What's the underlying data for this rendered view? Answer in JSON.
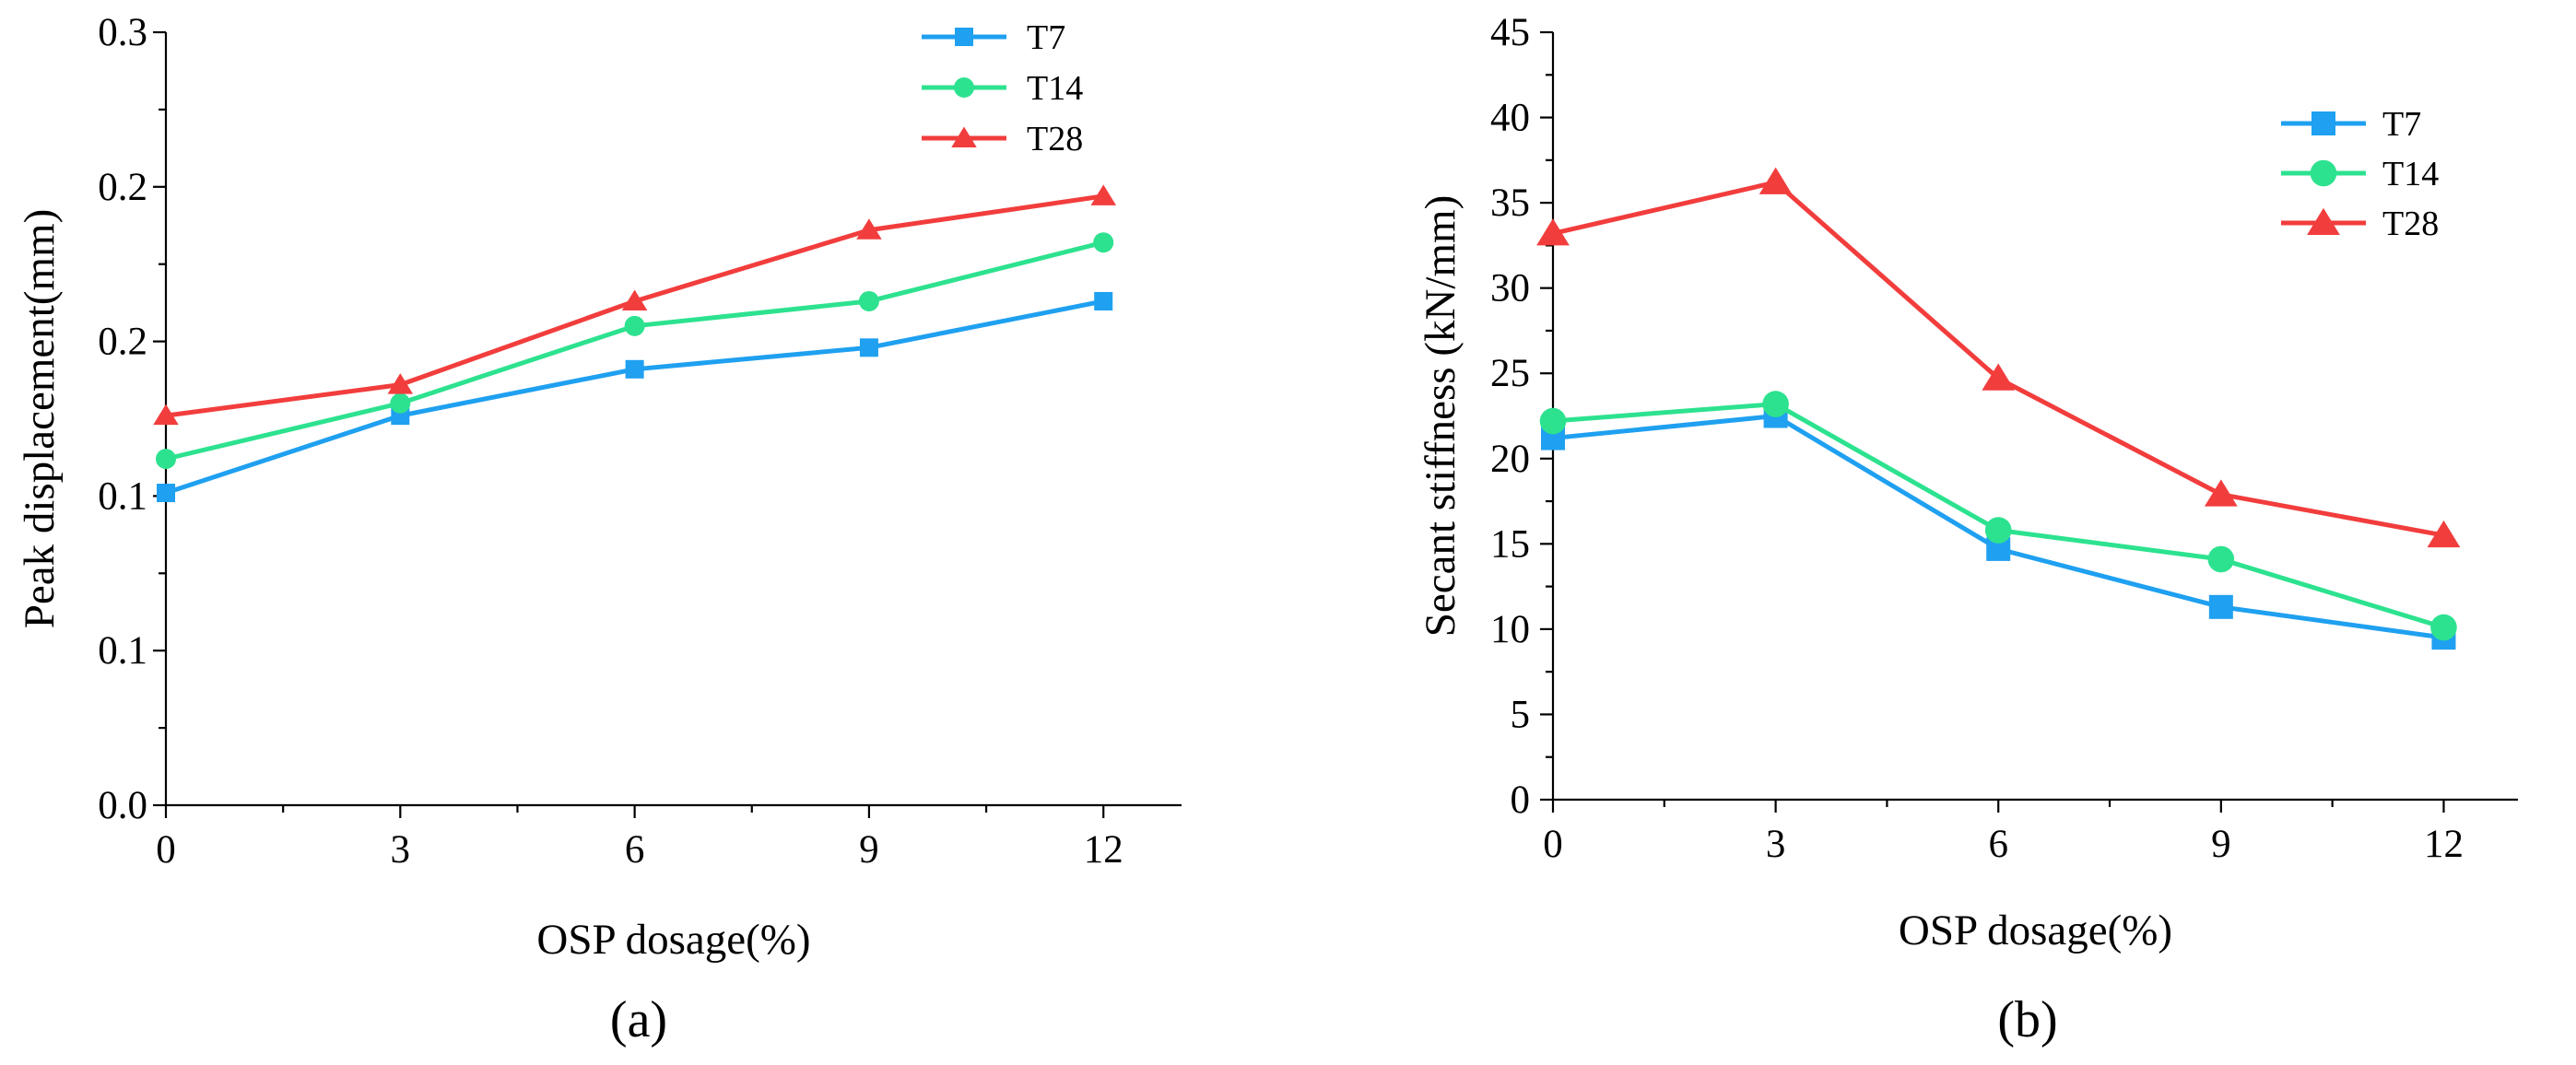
{
  "chart_data": [
    {
      "type": "line",
      "panel_label": "(a)",
      "xlabel": "OSP dosage(%)",
      "ylabel": "Peak displacement(mm)",
      "x": [
        0,
        3,
        6,
        9,
        12
      ],
      "xticks": [
        "0",
        "3",
        "6",
        "9",
        "12"
      ],
      "xlim": [
        0,
        13
      ],
      "ylim": [
        0,
        0.25
      ],
      "yticks": [
        {
          "value": 0,
          "label": "0.0"
        },
        {
          "value": 0.05,
          "label": "0.1"
        },
        {
          "value": 0.1,
          "label": "0.1"
        },
        {
          "value": 0.15,
          "label": "0.2"
        },
        {
          "value": 0.2,
          "label": "0.2"
        },
        {
          "value": 0.25,
          "label": "0.3"
        }
      ],
      "legend_position": "top-right",
      "series": [
        {
          "name": "T7",
          "marker": "square",
          "color": "#1fa0f0",
          "values": [
            0.101,
            0.126,
            0.141,
            0.148,
            0.163
          ]
        },
        {
          "name": "T14",
          "marker": "circle",
          "color": "#2de28f",
          "values": [
            0.112,
            0.13,
            0.155,
            0.163,
            0.182
          ]
        },
        {
          "name": "T28",
          "marker": "triangle",
          "color": "#f23d3d",
          "values": [
            0.126,
            0.136,
            0.163,
            0.186,
            0.197
          ]
        }
      ]
    },
    {
      "type": "line",
      "panel_label": "(b)",
      "xlabel": "OSP dosage(%)",
      "ylabel": "Secant stiffness (kN/mm)",
      "x": [
        0,
        3,
        6,
        9,
        12
      ],
      "xticks": [
        "0",
        "3",
        "6",
        "9",
        "12"
      ],
      "xlim": [
        0,
        13
      ],
      "ylim": [
        0,
        45
      ],
      "yticks": [
        {
          "value": 0,
          "label": "0"
        },
        {
          "value": 5,
          "label": "5"
        },
        {
          "value": 10,
          "label": "10"
        },
        {
          "value": 15,
          "label": "15"
        },
        {
          "value": 20,
          "label": "20"
        },
        {
          "value": 25,
          "label": "25"
        },
        {
          "value": 30,
          "label": "30"
        },
        {
          "value": 35,
          "label": "35"
        },
        {
          "value": 40,
          "label": "40"
        },
        {
          "value": 45,
          "label": "45"
        }
      ],
      "legend_position": "top-right",
      "series": [
        {
          "name": "T7",
          "marker": "square",
          "color": "#1fa0f0",
          "values": [
            21.2,
            22.5,
            14.7,
            11.3,
            9.5
          ]
        },
        {
          "name": "T14",
          "marker": "circle",
          "color": "#2de28f",
          "values": [
            22.2,
            23.2,
            15.8,
            14.1,
            10.1
          ]
        },
        {
          "name": "T28",
          "marker": "triangle",
          "color": "#f23d3d",
          "values": [
            33.2,
            36.2,
            24.7,
            17.9,
            15.5
          ]
        }
      ]
    }
  ]
}
